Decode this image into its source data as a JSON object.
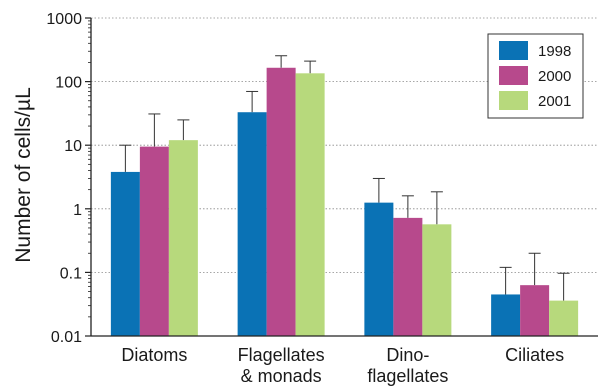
{
  "chart_data": {
    "type": "bar",
    "yscale": "log",
    "ylim": [
      0.01,
      1000
    ],
    "ylabel": "Number of cells/µL",
    "xlabel": "",
    "title": "",
    "grid": "horizontal-dotted",
    "legend_position": "top-right",
    "y_ticks": [
      {
        "value": 1000,
        "label": "1000"
      },
      {
        "value": 100,
        "label": "100"
      },
      {
        "value": 10,
        "label": "10"
      },
      {
        "value": 1,
        "label": "1"
      },
      {
        "value": 0.1,
        "label": "0.1"
      },
      {
        "value": 0.01,
        "label": "0.01"
      }
    ],
    "categories": [
      [
        "Diatoms"
      ],
      [
        "Flagellates",
        "& monads"
      ],
      [
        "Dino-",
        "flagellates"
      ],
      [
        "Ciliates"
      ]
    ],
    "series": [
      {
        "name": "1998",
        "color": "#0a72b5",
        "values": [
          3.8,
          33,
          1.25,
          0.045
        ],
        "error_upper": [
          10,
          70,
          3.0,
          0.12
        ]
      },
      {
        "name": "2000",
        "color": "#b7498c",
        "values": [
          9.5,
          165,
          0.72,
          0.063
        ],
        "error_upper": [
          31,
          255,
          1.6,
          0.2
        ]
      },
      {
        "name": "2001",
        "color": "#b7d97c",
        "values": [
          12,
          135,
          0.57,
          0.036
        ],
        "error_upper": [
          25,
          210,
          1.85,
          0.097
        ]
      }
    ]
  }
}
